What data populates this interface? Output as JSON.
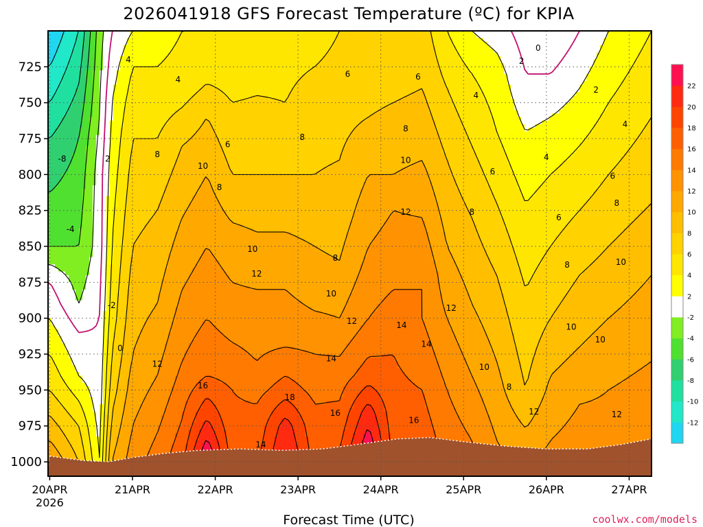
{
  "chart_data": {
    "type": "heatmap",
    "title": "2026041918 GFS Forecast Temperature (ºC) for KPIA",
    "xlabel": "Forecast Time (UTC)",
    "ylabel": "",
    "credit": "coolwx.com/models",
    "x_ticks": [
      {
        "day": 20,
        "label": "20APR",
        "sublabel": "2026"
      },
      {
        "day": 21,
        "label": "21APR"
      },
      {
        "day": 22,
        "label": "22APR"
      },
      {
        "day": 23,
        "label": "23APR"
      },
      {
        "day": 24,
        "label": "24APR"
      },
      {
        "day": 25,
        "label": "25APR"
      },
      {
        "day": 26,
        "label": "26APR"
      },
      {
        "day": 27,
        "label": "27APR"
      }
    ],
    "xlim": [
      19.98,
      27.27
    ],
    "ylim": [
      1010,
      700
    ],
    "y_ticks": [
      725,
      750,
      775,
      800,
      825,
      850,
      875,
      900,
      925,
      950,
      975,
      1000
    ],
    "contour_interval": 2,
    "colorbar": {
      "levels": [
        -14,
        -12,
        -10,
        -8,
        -6,
        -4,
        -2,
        2,
        4,
        6,
        8,
        10,
        12,
        14,
        16,
        18,
        20,
        22,
        24
      ],
      "colors": [
        "#20d6f0",
        "#20e8c8",
        "#20e0a0",
        "#30d070",
        "#50e030",
        "#80ee20",
        "#ffffff",
        "#ffff00",
        "#ffe600",
        "#ffd200",
        "#ffbe00",
        "#ffa800",
        "#ff9200",
        "#ff7a00",
        "#ff5f00",
        "#ff4400",
        "#ff2a10",
        "#ff1050"
      ],
      "tick_labels": [
        -12,
        -10,
        -8,
        -6,
        -4,
        -2,
        2,
        4,
        6,
        8,
        10,
        12,
        14,
        16,
        18,
        20,
        22
      ]
    },
    "terrain_color": "#a0522d",
    "surface_pressure": [
      {
        "t": 20.0,
        "p": 996
      },
      {
        "t": 20.4,
        "p": 999
      },
      {
        "t": 20.7,
        "p": 1000
      },
      {
        "t": 21.0,
        "p": 997
      },
      {
        "t": 21.4,
        "p": 994
      },
      {
        "t": 21.8,
        "p": 992
      },
      {
        "t": 22.3,
        "p": 991
      },
      {
        "t": 22.8,
        "p": 992
      },
      {
        "t": 23.3,
        "p": 991
      },
      {
        "t": 23.7,
        "p": 988
      },
      {
        "t": 24.2,
        "p": 984
      },
      {
        "t": 24.6,
        "p": 983
      },
      {
        "t": 25.0,
        "p": 986
      },
      {
        "t": 25.5,
        "p": 989
      },
      {
        "t": 26.0,
        "p": 991
      },
      {
        "t": 26.5,
        "p": 991
      },
      {
        "t": 26.9,
        "p": 988
      },
      {
        "t": 27.27,
        "p": 984
      }
    ],
    "profiles": [
      {
        "t": 20.0,
        "levels": [
          [
            700,
            -14
          ],
          [
            775,
            -8
          ],
          [
            850,
            -4
          ],
          [
            875,
            0
          ],
          [
            900,
            2
          ],
          [
            950,
            6
          ],
          [
            985,
            10
          ],
          [
            1000,
            12
          ]
        ]
      },
      {
        "t": 20.35,
        "levels": [
          [
            700,
            -10
          ],
          [
            775,
            -6
          ],
          [
            850,
            -4
          ],
          [
            890,
            -2
          ],
          [
            910,
            0
          ],
          [
            940,
            2
          ],
          [
            975,
            6
          ],
          [
            1000,
            8
          ]
        ]
      },
      {
        "t": 20.6,
        "levels": [
          [
            700,
            -3
          ],
          [
            760,
            -2
          ],
          [
            800,
            -1
          ],
          [
            850,
            -1
          ],
          [
            900,
            0
          ],
          [
            960,
            1
          ],
          [
            1000,
            2
          ]
        ]
      },
      {
        "t": 20.75,
        "levels": [
          [
            700,
            0
          ],
          [
            750,
            2
          ],
          [
            800,
            3
          ],
          [
            850,
            4
          ],
          [
            900,
            5
          ],
          [
            950,
            7
          ],
          [
            1000,
            10
          ]
        ]
      },
      {
        "t": 21.0,
        "levels": [
          [
            700,
            2
          ],
          [
            725,
            4
          ],
          [
            775,
            6
          ],
          [
            850,
            8
          ],
          [
            925,
            10
          ],
          [
            975,
            12
          ],
          [
            1000,
            13
          ]
        ]
      },
      {
        "t": 21.3,
        "levels": [
          [
            700,
            3
          ],
          [
            725,
            4
          ],
          [
            775,
            6
          ],
          [
            825,
            8
          ],
          [
            890,
            10
          ],
          [
            940,
            12
          ],
          [
            980,
            14
          ]
        ]
      },
      {
        "t": 21.6,
        "levels": [
          [
            700,
            4
          ],
          [
            740,
            5
          ],
          [
            780,
            8
          ],
          [
            830,
            10
          ],
          [
            880,
            12
          ],
          [
            930,
            14
          ],
          [
            970,
            16
          ]
        ]
      },
      {
        "t": 21.9,
        "levels": [
          [
            700,
            4
          ],
          [
            725,
            5
          ],
          [
            760,
            8
          ],
          [
            800,
            10
          ],
          [
            850,
            12
          ],
          [
            900,
            14
          ],
          [
            940,
            16
          ],
          [
            970,
            20
          ],
          [
            990,
            23
          ]
        ]
      },
      {
        "t": 22.2,
        "levels": [
          [
            700,
            4
          ],
          [
            750,
            6
          ],
          [
            800,
            8
          ],
          [
            850,
            11
          ],
          [
            900,
            13
          ],
          [
            950,
            16
          ],
          [
            990,
            17
          ]
        ]
      },
      {
        "t": 22.5,
        "levels": [
          [
            700,
            4
          ],
          [
            745,
            6
          ],
          [
            800,
            8
          ],
          [
            840,
            10
          ],
          [
            880,
            12
          ],
          [
            930,
            14
          ],
          [
            960,
            16
          ],
          [
            985,
            17
          ]
        ]
      },
      {
        "t": 22.85,
        "levels": [
          [
            700,
            5
          ],
          [
            750,
            6
          ],
          [
            800,
            8
          ],
          [
            840,
            10
          ],
          [
            880,
            12
          ],
          [
            920,
            14
          ],
          [
            950,
            17
          ],
          [
            975,
            21
          ],
          [
            990,
            22
          ]
        ]
      },
      {
        "t": 23.2,
        "levels": [
          [
            700,
            5
          ],
          [
            750,
            7
          ],
          [
            800,
            8
          ],
          [
            850,
            10
          ],
          [
            880,
            11
          ],
          [
            925,
            14
          ],
          [
            960,
            16
          ],
          [
            990,
            17
          ]
        ]
      },
      {
        "t": 23.5,
        "levels": [
          [
            700,
            6
          ],
          [
            740,
            7
          ],
          [
            790,
            8
          ],
          [
            830,
            9
          ],
          [
            860,
            10
          ],
          [
            900,
            12
          ],
          [
            940,
            15
          ],
          [
            975,
            17
          ]
        ]
      },
      {
        "t": 23.85,
        "levels": [
          [
            700,
            6
          ],
          [
            760,
            8
          ],
          [
            800,
            10
          ],
          [
            850,
            12
          ],
          [
            900,
            14
          ],
          [
            940,
            17
          ],
          [
            965,
            21
          ],
          [
            985,
            23
          ]
        ]
      },
      {
        "t": 24.15,
        "levels": [
          [
            700,
            6
          ],
          [
            750,
            8
          ],
          [
            800,
            10
          ],
          [
            825,
            12
          ],
          [
            880,
            14
          ],
          [
            925,
            16
          ],
          [
            975,
            17
          ]
        ]
      },
      {
        "t": 24.5,
        "levels": [
          [
            700,
            7
          ],
          [
            740,
            8
          ],
          [
            790,
            10
          ],
          [
            830,
            12
          ],
          [
            870,
            14
          ],
          [
            900,
            14
          ],
          [
            950,
            16
          ],
          [
            980,
            17
          ]
        ]
      },
      {
        "t": 24.8,
        "levels": [
          [
            700,
            4
          ],
          [
            740,
            6
          ],
          [
            790,
            8
          ],
          [
            850,
            10
          ],
          [
            900,
            12
          ],
          [
            950,
            14
          ],
          [
            980,
            15
          ]
        ]
      },
      {
        "t": 25.1,
        "levels": [
          [
            700,
            2
          ],
          [
            730,
            4
          ],
          [
            780,
            6
          ],
          [
            830,
            8
          ],
          [
            890,
            10
          ],
          [
            940,
            12
          ],
          [
            985,
            14
          ]
        ]
      },
      {
        "t": 25.4,
        "levels": [
          [
            700,
            1
          ],
          [
            730,
            3
          ],
          [
            770,
            4
          ],
          [
            820,
            6
          ],
          [
            870,
            8
          ],
          [
            930,
            10
          ],
          [
            985,
            12
          ]
        ]
      },
      {
        "t": 25.75,
        "levels": [
          [
            700,
            -1
          ],
          [
            730,
            0
          ],
          [
            770,
            2
          ],
          [
            820,
            4
          ],
          [
            880,
            6
          ],
          [
            950,
            8
          ],
          [
            990,
            11
          ]
        ]
      },
      {
        "t": 26.05,
        "levels": [
          [
            700,
            -2
          ],
          [
            730,
            0
          ],
          [
            760,
            2
          ],
          [
            800,
            4
          ],
          [
            850,
            6
          ],
          [
            900,
            8
          ],
          [
            940,
            10
          ],
          [
            985,
            12
          ]
        ]
      },
      {
        "t": 26.4,
        "levels": [
          [
            700,
            0
          ],
          [
            740,
            2
          ],
          [
            780,
            4
          ],
          [
            825,
            6
          ],
          [
            870,
            8
          ],
          [
            920,
            10
          ],
          [
            960,
            12
          ],
          [
            990,
            13
          ]
        ]
      },
      {
        "t": 26.75,
        "levels": [
          [
            700,
            2
          ],
          [
            750,
            4
          ],
          [
            800,
            6
          ],
          [
            850,
            8
          ],
          [
            900,
            10
          ],
          [
            950,
            12
          ],
          [
            990,
            13
          ]
        ]
      },
      {
        "t": 27.27,
        "levels": [
          [
            700,
            4
          ],
          [
            760,
            6
          ],
          [
            820,
            8
          ],
          [
            870,
            10
          ],
          [
            930,
            12
          ],
          [
            985,
            14
          ]
        ]
      }
    ],
    "contour_labels": [
      {
        "text": "4",
        "t": 20.95,
        "p": 720
      },
      {
        "text": "4",
        "t": 21.55,
        "p": 734
      },
      {
        "text": "6",
        "t": 22.15,
        "p": 779
      },
      {
        "text": "8",
        "t": 21.3,
        "p": 786
      },
      {
        "text": "10",
        "t": 21.85,
        "p": 794
      },
      {
        "text": "8",
        "t": 22.05,
        "p": 809
      },
      {
        "text": "2",
        "t": 20.7,
        "p": 789
      },
      {
        "text": "-8",
        "t": 20.15,
        "p": 789
      },
      {
        "text": "-4",
        "t": 20.25,
        "p": 838
      },
      {
        "text": "-2",
        "t": 20.75,
        "p": 891
      },
      {
        "text": "0",
        "t": 20.85,
        "p": 921
      },
      {
        "text": "12",
        "t": 21.3,
        "p": 932
      },
      {
        "text": "16",
        "t": 21.85,
        "p": 947
      },
      {
        "text": "14",
        "t": 22.55,
        "p": 988
      },
      {
        "text": "18",
        "t": 22.9,
        "p": 955
      },
      {
        "text": "16",
        "t": 23.45,
        "p": 966
      },
      {
        "text": "14",
        "t": 23.4,
        "p": 928
      },
      {
        "text": "10",
        "t": 22.45,
        "p": 852
      },
      {
        "text": "12",
        "t": 22.5,
        "p": 869
      },
      {
        "text": "10",
        "t": 23.4,
        "p": 883
      },
      {
        "text": "12",
        "t": 23.65,
        "p": 902
      },
      {
        "text": "8",
        "t": 23.45,
        "p": 858
      },
      {
        "text": "8",
        "t": 23.05,
        "p": 774
      },
      {
        "text": "6",
        "t": 23.6,
        "p": 730
      },
      {
        "text": "6",
        "t": 24.45,
        "p": 732
      },
      {
        "text": "8",
        "t": 24.3,
        "p": 768
      },
      {
        "text": "10",
        "t": 24.3,
        "p": 790
      },
      {
        "text": "12",
        "t": 24.3,
        "p": 826
      },
      {
        "text": "14",
        "t": 24.25,
        "p": 905
      },
      {
        "text": "14",
        "t": 24.55,
        "p": 918
      },
      {
        "text": "12",
        "t": 24.85,
        "p": 893
      },
      {
        "text": "16",
        "t": 24.4,
        "p": 971
      },
      {
        "text": "10",
        "t": 25.25,
        "p": 934
      },
      {
        "text": "8",
        "t": 25.55,
        "p": 948
      },
      {
        "text": "12",
        "t": 25.85,
        "p": 965
      },
      {
        "text": "8",
        "t": 25.1,
        "p": 826
      },
      {
        "text": "6",
        "t": 25.35,
        "p": 798
      },
      {
        "text": "4",
        "t": 25.15,
        "p": 745
      },
      {
        "text": "2",
        "t": 25.7,
        "p": 721
      },
      {
        "text": "0",
        "t": 25.9,
        "p": 712
      },
      {
        "text": "2",
        "t": 26.6,
        "p": 741
      },
      {
        "text": "4",
        "t": 26.95,
        "p": 765
      },
      {
        "text": "4",
        "t": 26.0,
        "p": 788
      },
      {
        "text": "6",
        "t": 26.15,
        "p": 830
      },
      {
        "text": "8",
        "t": 26.25,
        "p": 863
      },
      {
        "text": "10",
        "t": 26.3,
        "p": 906
      },
      {
        "text": "10",
        "t": 26.65,
        "p": 915
      },
      {
        "text": "12",
        "t": 26.85,
        "p": 967
      },
      {
        "text": "10",
        "t": 26.9,
        "p": 861
      },
      {
        "text": "8",
        "t": 26.85,
        "p": 820
      },
      {
        "text": "6",
        "t": 26.8,
        "p": 801
      }
    ]
  }
}
